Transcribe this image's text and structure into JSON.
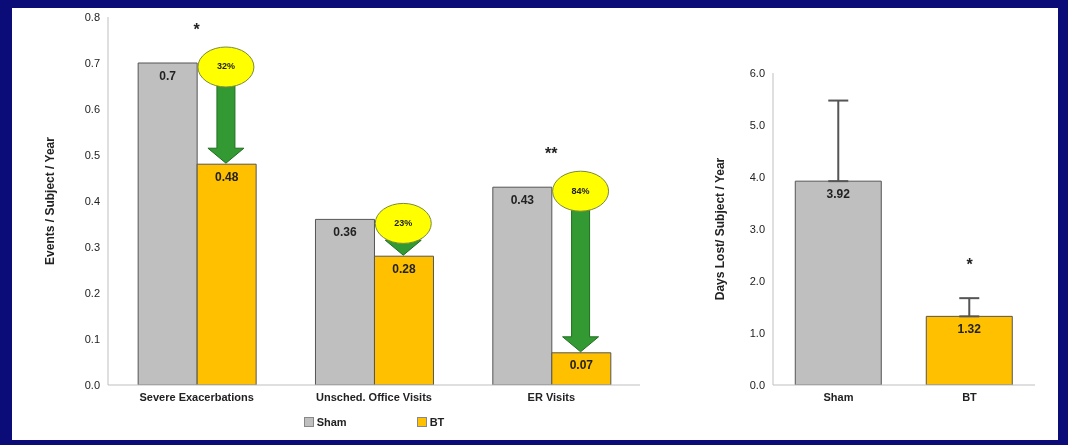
{
  "chart_data": [
    {
      "type": "bar",
      "ylabel": "Events / Subject / Year",
      "categories": [
        "Severe Exacerbations",
        "Unsched. Office Visits",
        "ER Visits"
      ],
      "series": [
        {
          "name": "Sham",
          "color": "#bfbfbf",
          "values": [
            0.7,
            0.36,
            0.43
          ]
        },
        {
          "name": "BT",
          "color": "#ffc000",
          "values": [
            0.48,
            0.28,
            0.07
          ]
        }
      ],
      "ylim": [
        0,
        0.8
      ],
      "yticks": [
        {
          "value": 0,
          "label": "0.0"
        },
        0.1,
        0.2,
        0.3,
        0.4,
        0.5,
        0.6,
        0.7,
        0.8
      ],
      "data_labels": true,
      "legend": "bottom",
      "grid": false,
      "annotations": [
        "*",
        "32%",
        "23%",
        "**",
        "84%"
      ]
    },
    {
      "type": "bar",
      "ylabel": "Days Lost/ Subject / Year",
      "categories": [
        "Sham",
        "BT"
      ],
      "values": [
        3.92,
        1.32
      ],
      "colors": [
        "#bfbfbf",
        "#ffc000"
      ],
      "errors": [
        [
          3.92,
          5.47
        ],
        [
          1.32,
          1.67
        ]
      ],
      "ylim": [
        0,
        6
      ],
      "yticks": [
        {
          "value": 0,
          "label": "0.0"
        },
        {
          "value": 1,
          "label": "1.0"
        },
        {
          "value": 2,
          "label": "2.0"
        },
        {
          "value": 3,
          "label": "3.0"
        },
        {
          "value": 4,
          "label": "4.0"
        },
        {
          "value": 5,
          "label": "5.0"
        },
        {
          "value": 6,
          "label": "6.0"
        }
      ],
      "data_labels": true,
      "grid": false,
      "annotations": [
        "*"
      ]
    }
  ]
}
